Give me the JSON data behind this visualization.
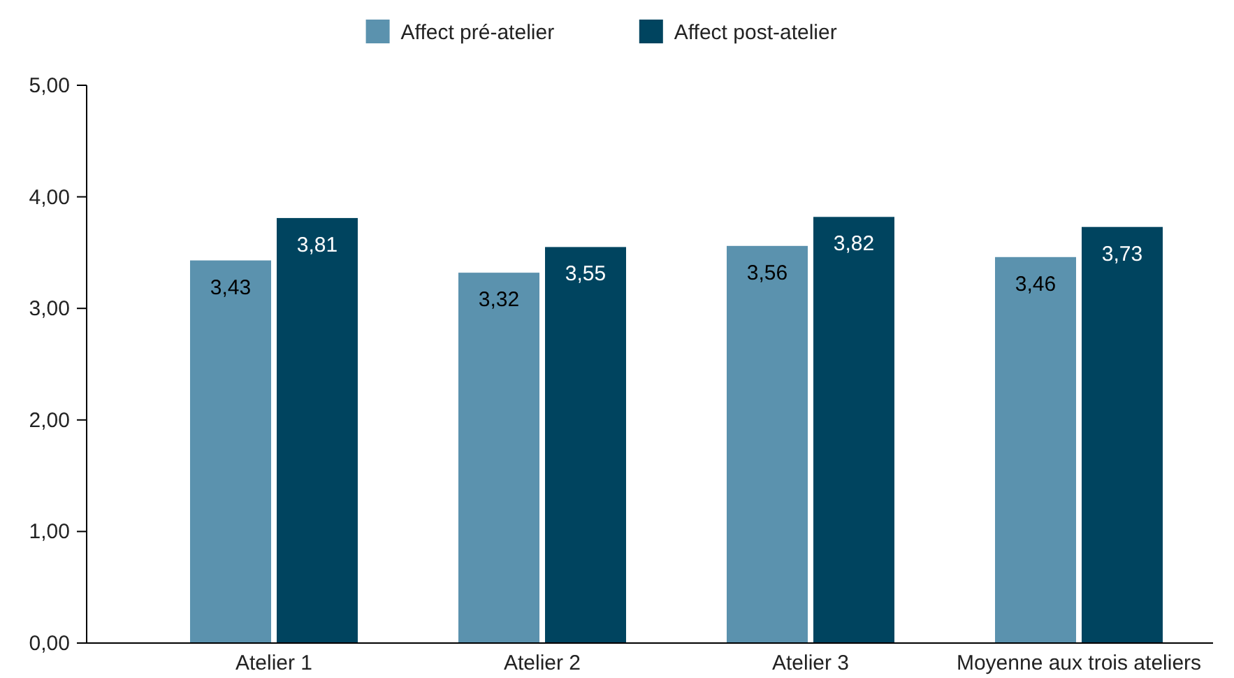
{
  "chart_data": {
    "type": "bar",
    "categories": [
      "Atelier 1",
      "Atelier 2",
      "Atelier 3",
      "Moyenne aux trois ateliers"
    ],
    "series": [
      {
        "name": "Affect pré-atelier",
        "color": "#5b92ae",
        "values": [
          3.43,
          3.32,
          3.56,
          3.46
        ],
        "value_labels": [
          "3,43",
          "3,32",
          "3,56",
          "3,46"
        ]
      },
      {
        "name": "Affect post-atelier",
        "color": "#00445f",
        "values": [
          3.81,
          3.55,
          3.82,
          3.73
        ],
        "value_labels": [
          "3,81",
          "3,55",
          "3,82",
          "3,73"
        ]
      }
    ],
    "ylim": [
      0,
      5
    ],
    "yticks": [
      {
        "value": 0,
        "label": "0,00"
      },
      {
        "value": 1,
        "label": "1,00"
      },
      {
        "value": 2,
        "label": "2,00"
      },
      {
        "value": 3,
        "label": "3,00"
      },
      {
        "value": 4,
        "label": "4,00"
      },
      {
        "value": 5,
        "label": "5,00"
      }
    ],
    "grid": false,
    "legend": "top"
  }
}
